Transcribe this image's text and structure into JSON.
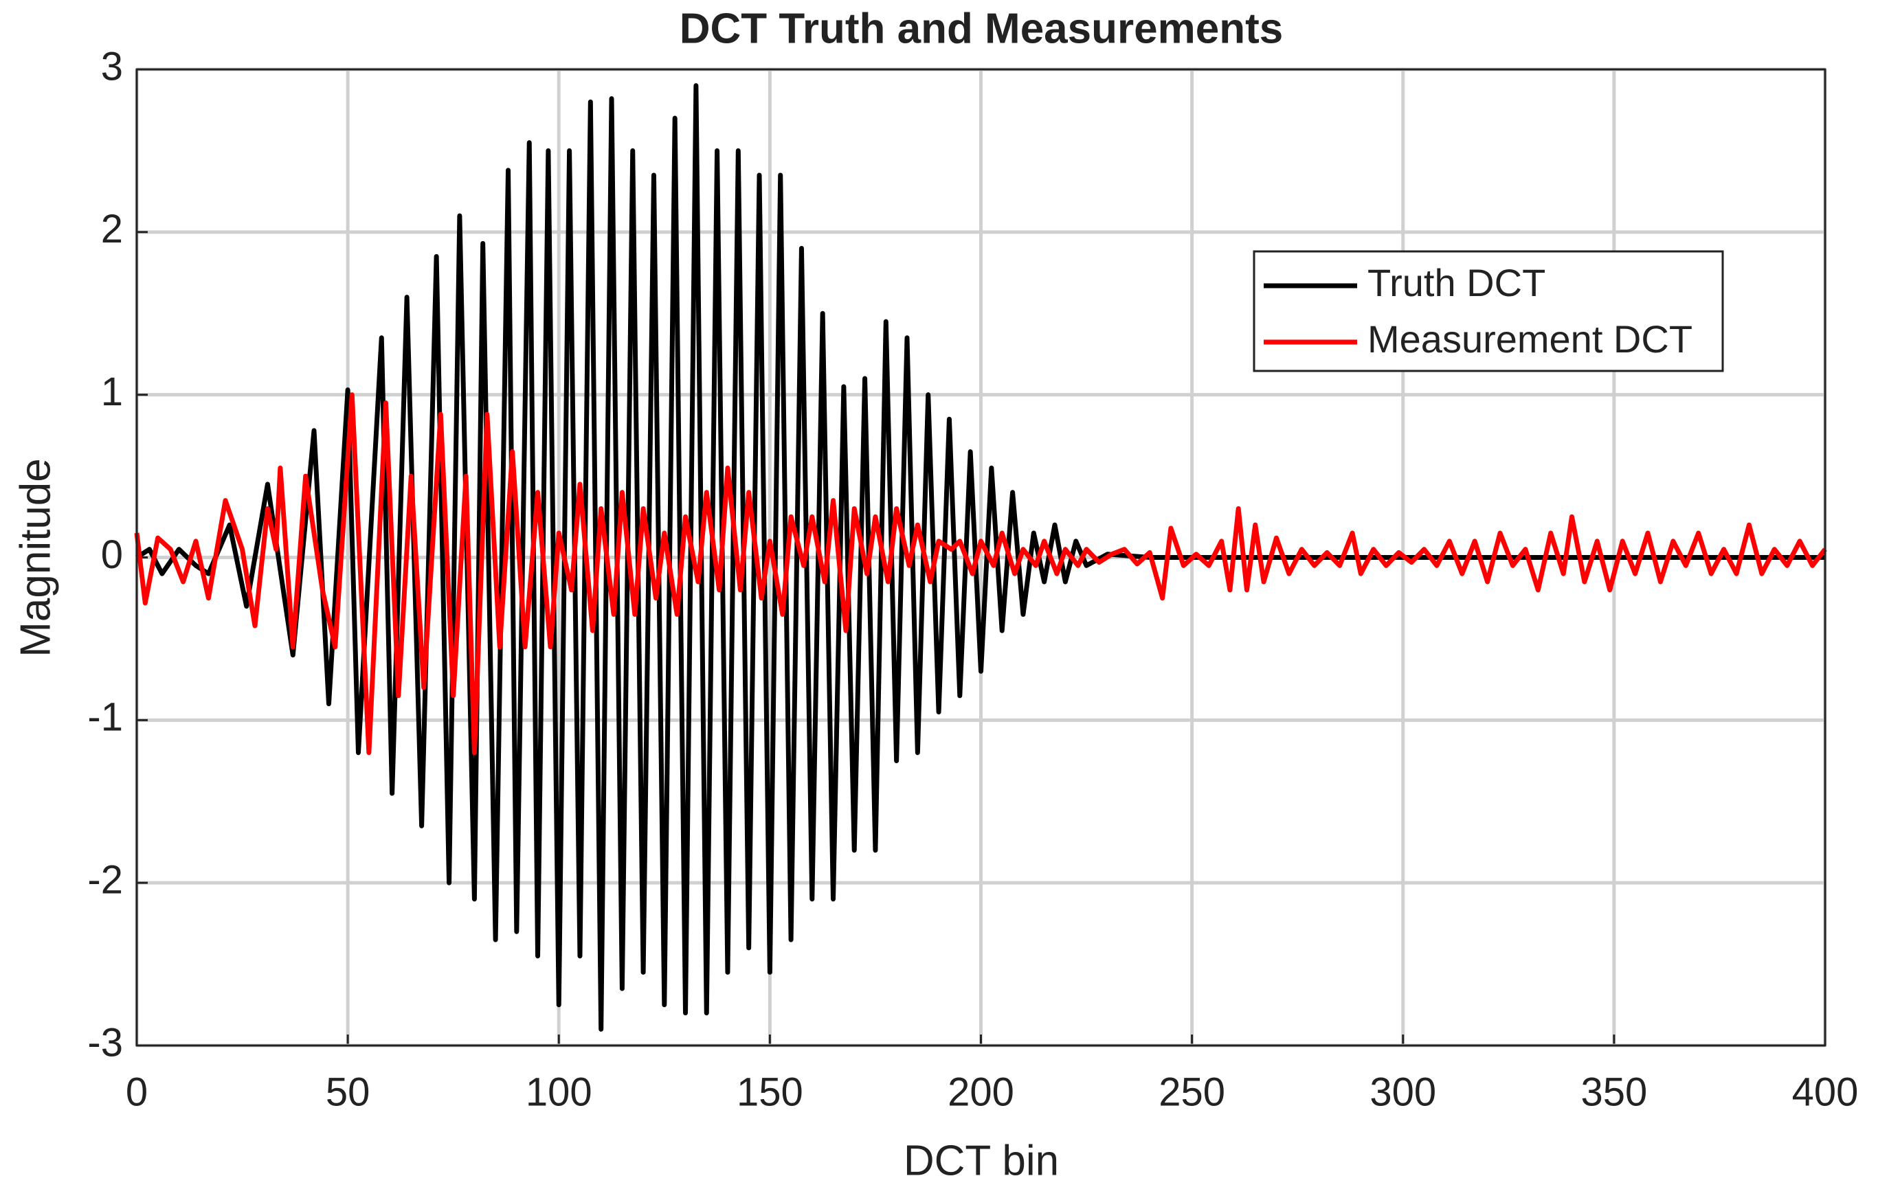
{
  "chart_data": {
    "type": "line",
    "title": "DCT Truth and Measurements",
    "x_label": "DCT bin",
    "y_label": "Magnitude",
    "xlim": [
      0,
      400
    ],
    "xticks": [
      0,
      50,
      100,
      150,
      200,
      250,
      300,
      350,
      400
    ],
    "ylim": [
      -3,
      3
    ],
    "yticks": [
      -3,
      -2,
      -1,
      0,
      1,
      2,
      3
    ],
    "grid": true,
    "legend": "northeast",
    "series": [
      {
        "name": "Truth DCT",
        "color": "#000000",
        "x": [
          0,
          3,
          6,
          10,
          14,
          17,
          22,
          26,
          31,
          37,
          42,
          45.5,
          50,
          52.5,
          58,
          60.5,
          64,
          67.5,
          71,
          74,
          76.5,
          80,
          82,
          85,
          88,
          90,
          93,
          95,
          97.5,
          100,
          102.5,
          105,
          107.5,
          110,
          112.5,
          115,
          117.5,
          120,
          122.5,
          125,
          127.5,
          130,
          132.5,
          135,
          137.5,
          140,
          142.5,
          145,
          147.5,
          150,
          152.5,
          155,
          157.5,
          160,
          162.5,
          165,
          167.5,
          170,
          172.5,
          175,
          177.5,
          180,
          182.5,
          185,
          187.5,
          190,
          192.5,
          195,
          197.5,
          200,
          202.5,
          205,
          207.5,
          210,
          212.5,
          215,
          217.5,
          220,
          222.5,
          225,
          230,
          240,
          400
        ],
        "values": [
          0,
          0.05,
          -0.1,
          0.05,
          -0.05,
          -0.1,
          0.2,
          -0.3,
          0.45,
          -0.6,
          0.78,
          -0.9,
          1.03,
          -1.2,
          1.35,
          -1.45,
          1.6,
          -1.65,
          1.85,
          -2.0,
          2.1,
          -2.1,
          1.93,
          -2.35,
          2.38,
          -2.3,
          2.55,
          -2.45,
          2.5,
          -2.75,
          2.5,
          -2.45,
          2.8,
          -2.9,
          2.82,
          -2.65,
          2.5,
          -2.55,
          2.35,
          -2.75,
          2.7,
          -2.8,
          2.9,
          -2.8,
          2.5,
          -2.55,
          2.5,
          -2.4,
          2.35,
          -2.55,
          2.35,
          -2.35,
          1.9,
          -2.1,
          1.5,
          -2.1,
          1.05,
          -1.8,
          1.1,
          -1.8,
          1.45,
          -1.25,
          1.35,
          -1.2,
          1.0,
          -0.95,
          0.85,
          -0.85,
          0.65,
          -0.7,
          0.55,
          -0.45,
          0.4,
          -0.35,
          0.15,
          -0.15,
          0.2,
          -0.15,
          0.1,
          -0.05,
          0.02,
          0,
          0
        ]
      },
      {
        "name": "Measurement DCT",
        "color": "#ff0000",
        "x": [
          0,
          2,
          5,
          8,
          11,
          14,
          17,
          21,
          25,
          28,
          31,
          33,
          34,
          37,
          40,
          44,
          47,
          51,
          55,
          59,
          62,
          65,
          68,
          72,
          75,
          78,
          80,
          83,
          86,
          89,
          92,
          95,
          98,
          100,
          103,
          105,
          108,
          110,
          113,
          115,
          118,
          120,
          123,
          125,
          128,
          130,
          133,
          135,
          138,
          140,
          143,
          145,
          148,
          150,
          153,
          155,
          158,
          160,
          163,
          165,
          168,
          170,
          173,
          175,
          178,
          180,
          183,
          185,
          188,
          190,
          193,
          195,
          198,
          200,
          203,
          205,
          208,
          210,
          213,
          215,
          218,
          220,
          223,
          225,
          228,
          231,
          234,
          237,
          240,
          243,
          245,
          248,
          251,
          254,
          257,
          259,
          261,
          263,
          265,
          267,
          270,
          273,
          276,
          279,
          282,
          285,
          288,
          290,
          293,
          296,
          299,
          302,
          305,
          308,
          311,
          314,
          317,
          320,
          323,
          326,
          329,
          332,
          335,
          338,
          340,
          343,
          346,
          349,
          352,
          355,
          358,
          361,
          364,
          367,
          370,
          373,
          376,
          379,
          382,
          385,
          388,
          391,
          394,
          397,
          400
        ],
        "values": [
          0.15,
          -0.28,
          0.12,
          0.05,
          -0.15,
          0.1,
          -0.25,
          0.35,
          0.05,
          -0.42,
          0.3,
          0.05,
          0.55,
          -0.55,
          0.5,
          -0.2,
          -0.55,
          1.0,
          -1.2,
          0.95,
          -0.85,
          0.5,
          -0.8,
          0.88,
          -0.85,
          0.5,
          -1.2,
          0.88,
          -0.55,
          0.65,
          -0.55,
          0.4,
          -0.55,
          0.15,
          -0.2,
          0.45,
          -0.45,
          0.3,
          -0.35,
          0.4,
          -0.35,
          0.3,
          -0.25,
          0.15,
          -0.35,
          0.25,
          -0.15,
          0.4,
          -0.2,
          0.55,
          -0.2,
          0.4,
          -0.25,
          0.1,
          -0.35,
          0.25,
          -0.05,
          0.25,
          -0.15,
          0.35,
          -0.45,
          0.3,
          -0.1,
          0.25,
          -0.15,
          0.3,
          -0.05,
          0.2,
          -0.15,
          0.1,
          0.05,
          0.1,
          -0.1,
          0.1,
          -0.05,
          0.15,
          -0.1,
          0.05,
          -0.05,
          0.1,
          -0.1,
          0.05,
          -0.05,
          0.05,
          -0.03,
          0.02,
          0.05,
          -0.04,
          0.03,
          -0.25,
          0.18,
          -0.05,
          0.02,
          -0.05,
          0.1,
          -0.2,
          0.3,
          -0.2,
          0.2,
          -0.15,
          0.12,
          -0.1,
          0.05,
          -0.05,
          0.03,
          -0.05,
          0.15,
          -0.1,
          0.05,
          -0.05,
          0.03,
          -0.03,
          0.05,
          -0.05,
          0.1,
          -0.1,
          0.1,
          -0.15,
          0.15,
          -0.05,
          0.05,
          -0.2,
          0.15,
          -0.1,
          0.25,
          -0.15,
          0.1,
          -0.2,
          0.1,
          -0.1,
          0.15,
          -0.15,
          0.1,
          -0.05,
          0.15,
          -0.1,
          0.05,
          -0.1,
          0.2,
          -0.1,
          0.05,
          -0.05,
          0.1,
          -0.05,
          0.05
        ]
      }
    ]
  }
}
